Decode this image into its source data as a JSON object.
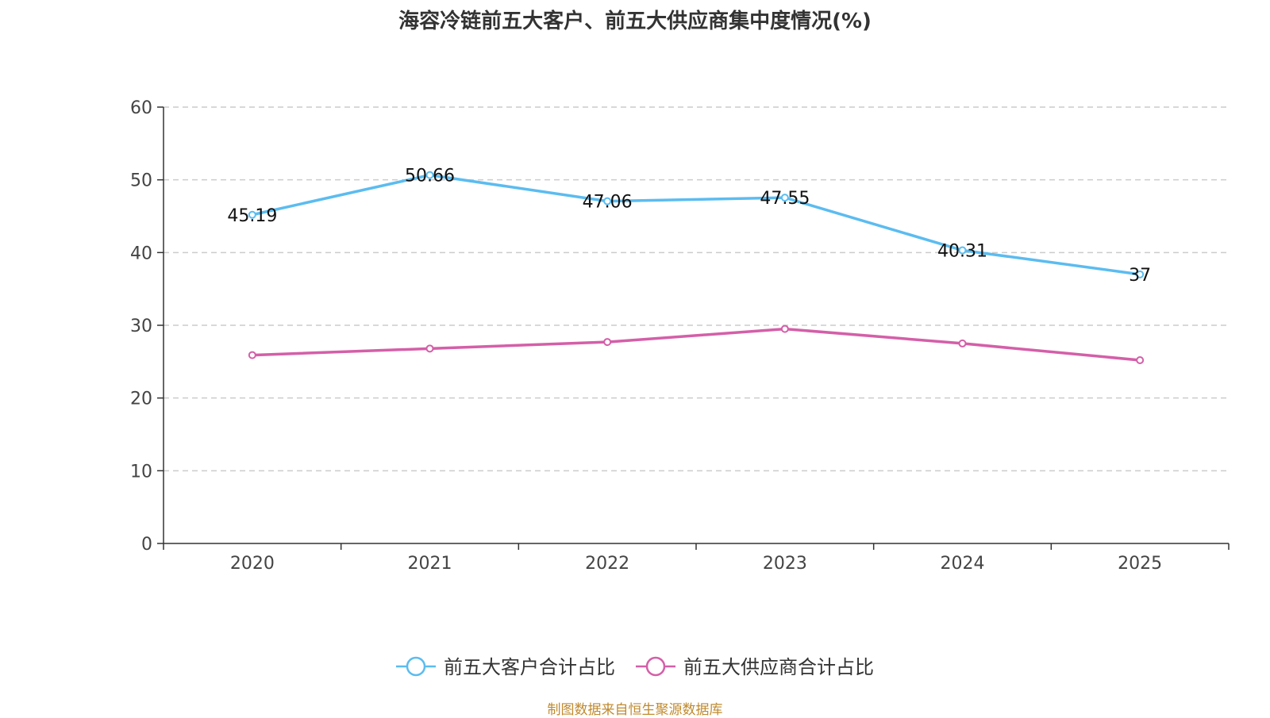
{
  "chart_data": {
    "type": "line",
    "title": "海容冷链前五大客户、前五大供应商集中度情况(%)",
    "categories": [
      "2020",
      "2021",
      "2022",
      "2023",
      "2024",
      "2025"
    ],
    "ylim": [
      0,
      60
    ],
    "yticks": [
      0,
      10,
      20,
      30,
      40,
      50,
      60
    ],
    "grid": true,
    "legend_position": "bottom",
    "series": [
      {
        "name": "前五大客户合计占比",
        "color": "#5bbcf0",
        "values": [
          45.19,
          50.66,
          47.06,
          47.55,
          40.31,
          37
        ],
        "labels": [
          "45.19",
          "50.66",
          "47.06",
          "47.55",
          "40.31",
          "37"
        ]
      },
      {
        "name": "前五大供应商合计占比",
        "color": "#d45fa8",
        "values": [
          25.9,
          26.8,
          27.7,
          29.5,
          27.5,
          25.2
        ],
        "labels": null
      }
    ]
  },
  "source_note": "制图数据来自恒生聚源数据库"
}
